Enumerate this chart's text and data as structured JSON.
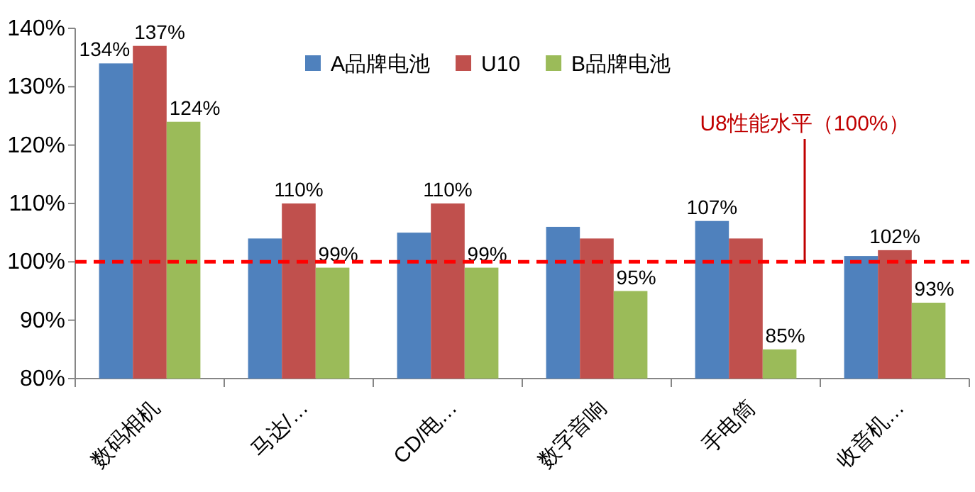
{
  "chart_data": {
    "type": "bar",
    "categories": [
      "数码相机",
      "马达/…",
      "CD/电…",
      "数字音响",
      "手电筒",
      "收音机…"
    ],
    "series": [
      {
        "name": "A品牌电池",
        "color": "#4f81bd",
        "values": [
          134,
          104,
          105,
          106,
          107,
          101
        ],
        "value_labels": [
          "134%",
          null,
          null,
          null,
          "107%",
          null
        ]
      },
      {
        "name": "U10",
        "color": "#c0504d",
        "values": [
          137,
          110,
          110,
          104,
          104,
          102
        ],
        "value_labels": [
          "137%",
          "110%",
          "110%",
          null,
          null,
          "102%"
        ]
      },
      {
        "name": "B品牌电池",
        "color": "#9bbb59",
        "values": [
          124,
          99,
          99,
          95,
          85,
          93
        ],
        "value_labels": [
          "124%",
          "99%",
          "99%",
          "95%",
          "85%",
          "93%"
        ]
      }
    ],
    "ylim": [
      80,
      140
    ],
    "yticks": [
      {
        "value": 80,
        "label": "80%"
      },
      {
        "value": 90,
        "label": "90%"
      },
      {
        "value": 100,
        "label": "100%"
      },
      {
        "value": 110,
        "label": "110%"
      },
      {
        "value": 120,
        "label": "120%"
      },
      {
        "value": 130,
        "label": "130%"
      },
      {
        "value": 140,
        "label": "140%"
      }
    ],
    "ref_lines": [
      {
        "axis": "y",
        "value": 100,
        "label": "U8性能水平（100%）",
        "color": "#ff0000",
        "line_style": "dashed"
      }
    ],
    "grid": false,
    "legend": "top"
  }
}
